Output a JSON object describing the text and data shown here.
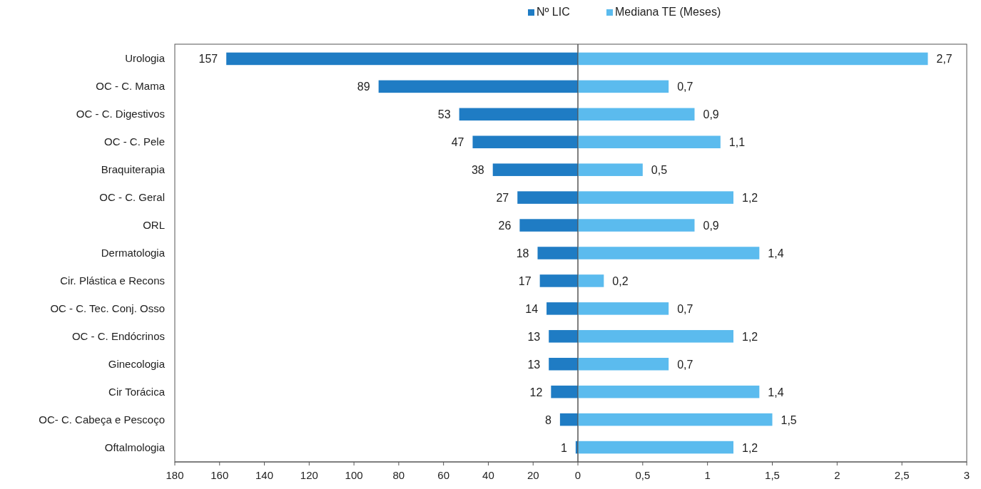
{
  "chart_data": [
    {
      "type": "bar",
      "orientation": "horizontal",
      "legend": "top",
      "data_labels": true,
      "categories": [
        "Urologia",
        "OC - C. Mama",
        "OC - C. Digestivos",
        "OC - C. Pele",
        "Braquiterapia",
        "OC - C. Geral",
        "ORL",
        "Dermatologia",
        "Cir. Plástica e Recons",
        "OC - C. Tec. Conj. Osso",
        "OC -  C. Endócrinos",
        "Ginecologia",
        "Cir Torácica",
        "OC- C. Cabeça e Pescoço",
        "Oftalmologia"
      ],
      "series": [
        {
          "name": "Nº LIC",
          "color": "#1f7cc4",
          "values": [
            157,
            89,
            53,
            47,
            38,
            27,
            26,
            18,
            17,
            14,
            13,
            13,
            12,
            8,
            1
          ]
        }
      ],
      "xlim": [
        180,
        0
      ],
      "xticks": [
        180,
        160,
        140,
        120,
        100,
        80,
        60,
        40,
        20,
        0
      ]
    },
    {
      "type": "bar",
      "orientation": "horizontal",
      "legend": "top",
      "tick_labels": "x",
      "categories": [
        null,
        null,
        null,
        null,
        null,
        null,
        null,
        null,
        null,
        null,
        null,
        null,
        null,
        null,
        null
      ],
      "series": [
        {
          "name": "Mediana TE (Meses)",
          "color": "#5bbbee",
          "values": [
            2.7,
            0.7,
            0.9,
            1.1,
            0.5,
            1.2,
            0.9,
            1.4,
            0.2,
            0.7,
            1.2,
            0.7,
            1.4,
            1.5,
            1.2
          ],
          "value_labels": [
            "2,7",
            "0,7",
            "0,9",
            "1,1",
            "0,5",
            "1,2",
            "0,9",
            "1,4",
            "0,2",
            "0,7",
            "1,2",
            "0,7",
            "1,4",
            "1,5",
            "1,2"
          ]
        }
      ],
      "xlim": [
        0,
        3
      ],
      "xticks": [
        {
          "value": 0.5,
          "label": "0,5"
        },
        1,
        {
          "value": 1.5,
          "label": "1,5"
        },
        2,
        {
          "value": 2.5,
          "label": "2,5"
        },
        3
      ]
    }
  ]
}
